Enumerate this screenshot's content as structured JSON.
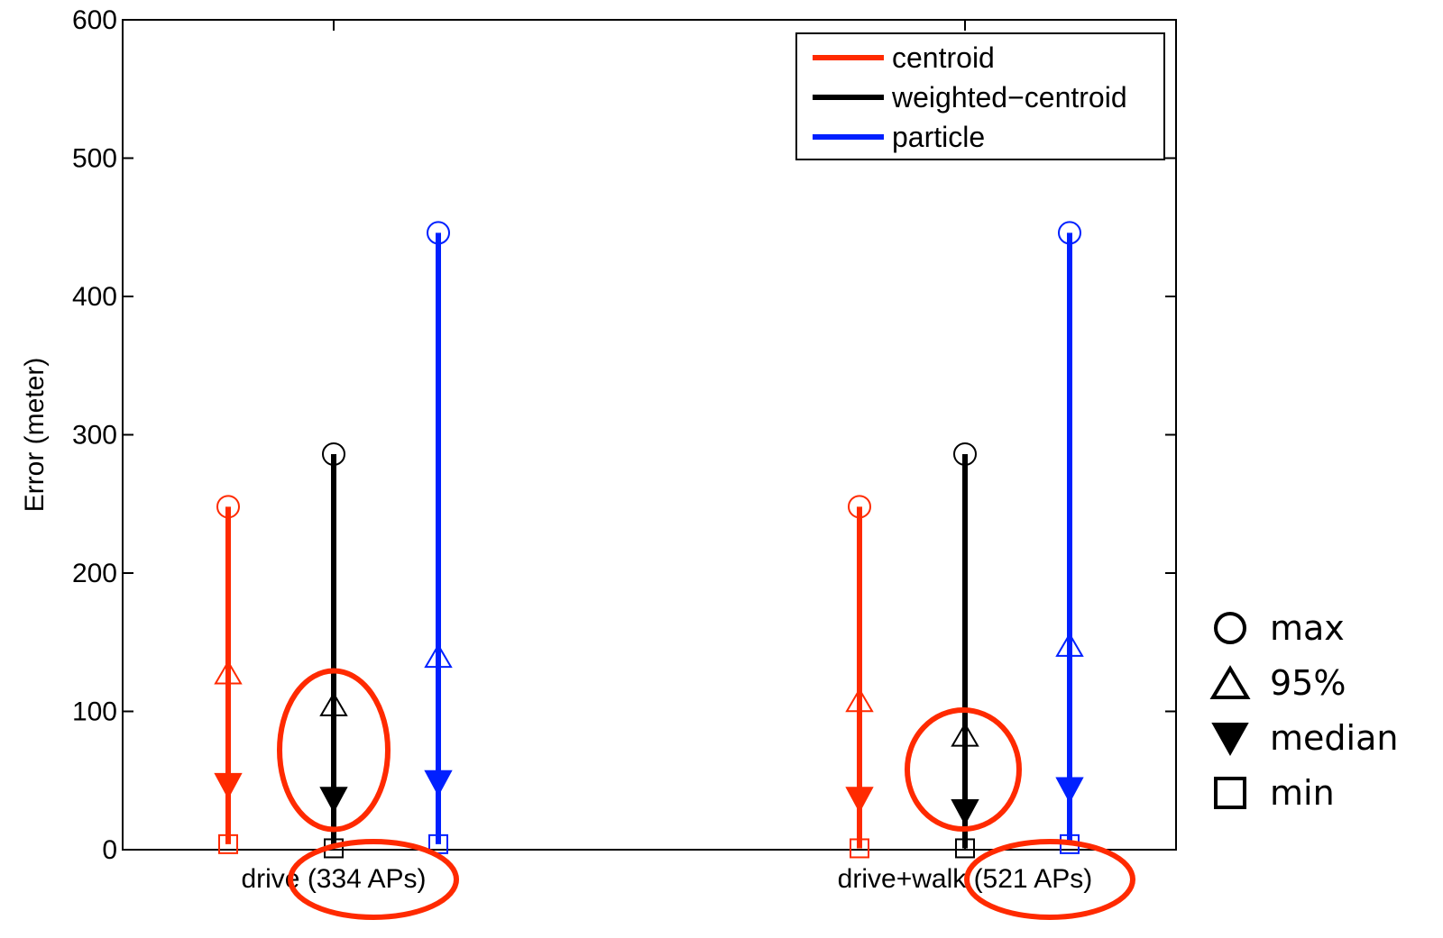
{
  "chart_data": {
    "type": "errorbar",
    "title": "",
    "xlabel": "",
    "ylabel": "Error (meter)",
    "ylim": [
      0,
      600
    ],
    "yticks": [
      0,
      100,
      200,
      300,
      400,
      500,
      600
    ],
    "grid": false,
    "legend_position": "top-right",
    "categories": [
      "drive (334 APs)",
      "drive+walk (521 APs)"
    ],
    "series": [
      {
        "name": "centroid",
        "color": "#ff2a00",
        "points": [
          {
            "category": "drive (334 APs)",
            "max": 248,
            "p95": 128,
            "median": 47,
            "min": 4
          },
          {
            "category": "drive+walk (521 APs)",
            "max": 248,
            "p95": 108,
            "median": 37,
            "min": 1
          }
        ]
      },
      {
        "name": "weighted−centroid",
        "color": "#000000",
        "points": [
          {
            "category": "drive (334 APs)",
            "max": 286,
            "p95": 105,
            "median": 37,
            "min": 1
          },
          {
            "category": "drive+walk (521 APs)",
            "max": 286,
            "p95": 83,
            "median": 28,
            "min": 1
          }
        ]
      },
      {
        "name": "particle",
        "color": "#0020ff",
        "points": [
          {
            "category": "drive (334 APs)",
            "max": 446,
            "p95": 140,
            "median": 49,
            "min": 4
          },
          {
            "category": "drive+walk (521 APs)",
            "max": 446,
            "p95": 148,
            "median": 44,
            "min": 4
          }
        ]
      }
    ],
    "stat_legend": [
      {
        "marker": "open-circle",
        "label": "max"
      },
      {
        "marker": "open-triangle",
        "label": "95%"
      },
      {
        "marker": "filled-down-triangle",
        "label": "median"
      },
      {
        "marker": "open-square",
        "label": "min"
      }
    ],
    "highlights": [
      {
        "type": "ellipse",
        "color": "#ff2a00",
        "around": "weighted−centroid p95/median, drive (334 APs)"
      },
      {
        "type": "ellipse",
        "color": "#ff2a00",
        "around": "weighted−centroid p95/median, drive+walk (521 APs)"
      },
      {
        "type": "ellipse",
        "color": "#ff2a00",
        "around": "tick label (334 APs)"
      },
      {
        "type": "ellipse",
        "color": "#ff2a00",
        "around": "tick label (521 APs)"
      }
    ]
  }
}
